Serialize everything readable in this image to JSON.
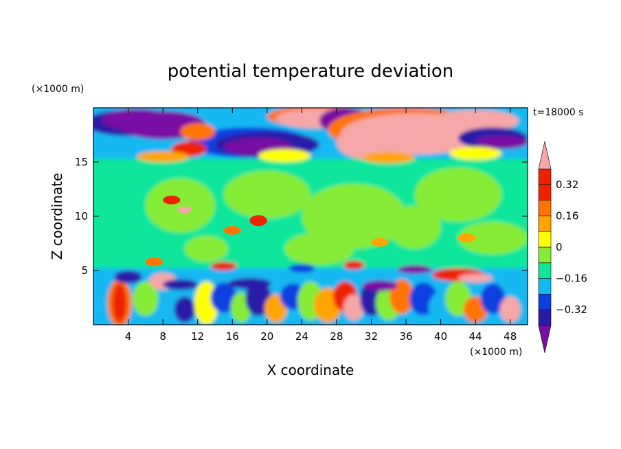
{
  "chart_data": {
    "type": "heatmap",
    "title": "potential temperature deviation",
    "xlabel": "X coordinate",
    "ylabel": "Z coordinate",
    "x_unit": "(×1000 m)",
    "y_unit": "(×1000 m)",
    "time_label": "t=18000 s",
    "xlim": [
      0,
      50
    ],
    "ylim": [
      0,
      20
    ],
    "x_ticks": [
      4,
      8,
      12,
      16,
      20,
      24,
      28,
      32,
      36,
      40,
      44,
      48
    ],
    "y_ticks": [
      5,
      10,
      15
    ],
    "colorbar": {
      "levels": [
        -0.4,
        -0.32,
        -0.24,
        -0.16,
        -0.08,
        0,
        0.08,
        0.16,
        0.24,
        0.32,
        0.4
      ],
      "tick_values": [
        -0.32,
        -0.16,
        0,
        0.16,
        0.32
      ],
      "tick_labels": [
        "−0.32",
        "−0.16",
        "0",
        "0.16",
        "0.32"
      ],
      "colors": [
        "#7a0ea3",
        "#2a1aa8",
        "#0a3fe0",
        "#13b8f2",
        "#10e69b",
        "#86ec36",
        "#ffff00",
        "#ffa400",
        "#ff7400",
        "#ee2200",
        "#f7a7a7"
      ],
      "extend": "both"
    }
  }
}
